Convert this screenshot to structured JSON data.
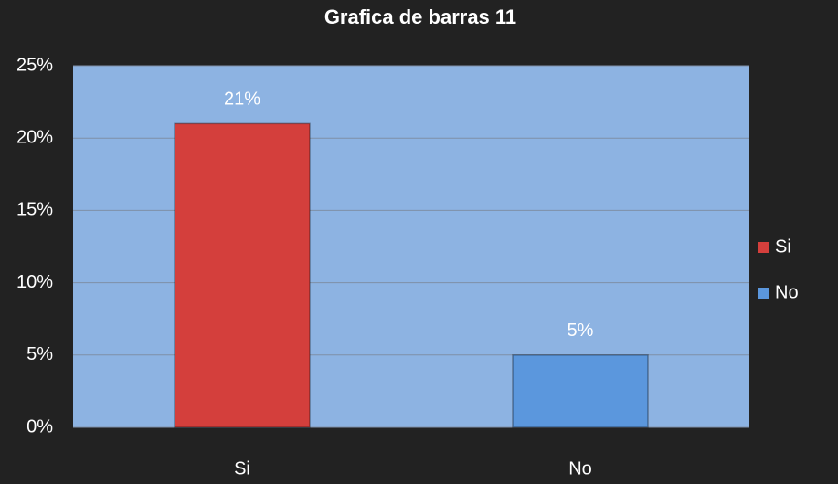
{
  "chart_data": {
    "type": "bar",
    "title": "Grafica de barras 11",
    "categories": [
      "Si",
      "No"
    ],
    "values": [
      21,
      5
    ],
    "value_labels": [
      "21%",
      "5%"
    ],
    "colors": [
      "#d43f3c",
      "#5b97dd"
    ],
    "ylim": [
      0,
      25
    ],
    "yticks": [
      {
        "value": 0,
        "label": "0%"
      },
      {
        "value": 5,
        "label": "5%"
      },
      {
        "value": 10,
        "label": "10%"
      },
      {
        "value": 15,
        "label": "15%"
      },
      {
        "value": 20,
        "label": "20%"
      },
      {
        "value": 25,
        "label": "25%"
      }
    ],
    "grid": true,
    "legend": "right"
  }
}
